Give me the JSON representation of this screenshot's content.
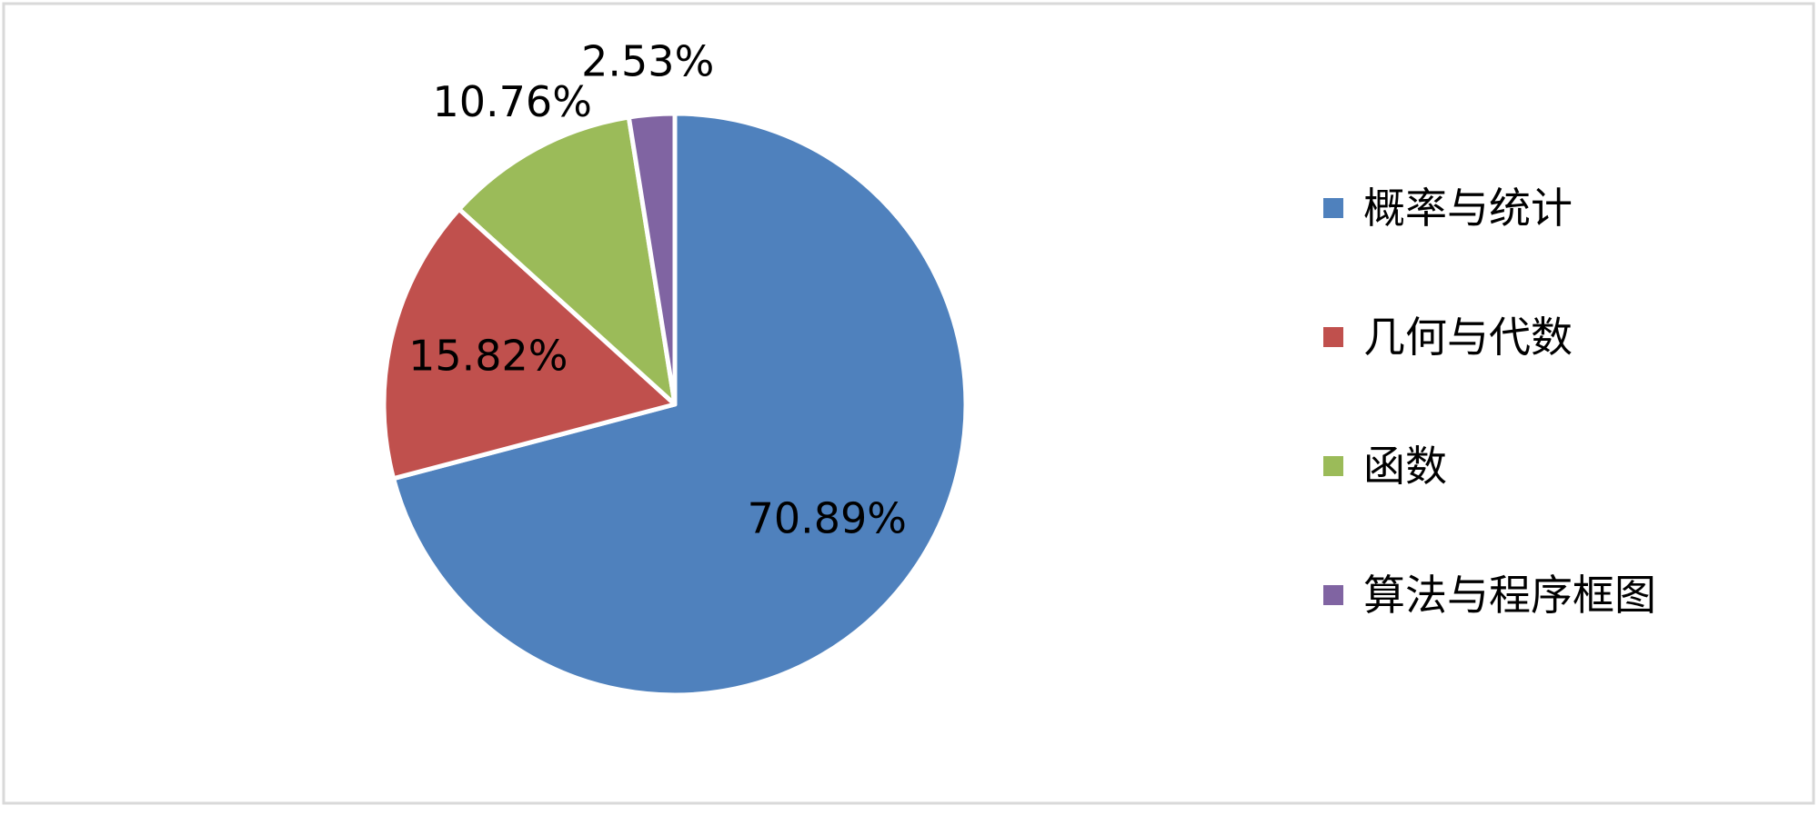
{
  "chart_data": {
    "type": "pie",
    "categories": [
      "概率与统计",
      "几何与代数",
      "函数",
      "算法与程序框图"
    ],
    "values": [
      70.89,
      15.82,
      10.76,
      2.53
    ],
    "value_labels": [
      "70.89%",
      "15.82%",
      "10.76%",
      "2.53%"
    ],
    "colors": [
      "#4f81bd",
      "#c0504d",
      "#9bbb59",
      "#8064a2"
    ],
    "legend": "right"
  }
}
